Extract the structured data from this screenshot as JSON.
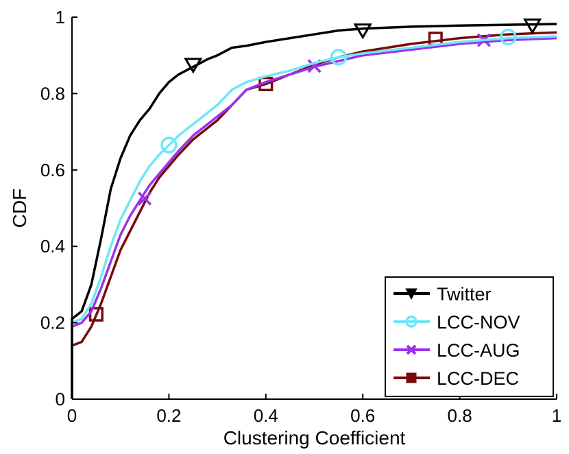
{
  "chart_data": {
    "type": "line",
    "title": "",
    "xlabel": "Clustering Coefficient",
    "ylabel": "CDF",
    "xlim": [
      0,
      1
    ],
    "ylim": [
      0,
      1
    ],
    "xticks": [
      0,
      0.2,
      0.4,
      0.6,
      0.8,
      1
    ],
    "yticks": [
      0,
      0.2,
      0.4,
      0.6,
      0.8,
      1
    ],
    "xtick_labels": [
      "0",
      "0.2",
      "0.4",
      "0.6",
      "0.8",
      "1"
    ],
    "ytick_labels": [
      "0",
      "0.2",
      "0.4",
      "0.6",
      "0.8",
      "1"
    ],
    "grid": false,
    "legend_position": "bottom-right",
    "series": [
      {
        "name": "Twitter",
        "color": "#000000",
        "marker": "triangle-down",
        "x": [
          0,
          0.02,
          0.04,
          0.06,
          0.08,
          0.1,
          0.12,
          0.14,
          0.16,
          0.18,
          0.2,
          0.22,
          0.25,
          0.28,
          0.3,
          0.33,
          0.36,
          0.4,
          0.45,
          0.5,
          0.55,
          0.6,
          0.7,
          0.8,
          0.9,
          1
        ],
        "y": [
          0.21,
          0.23,
          0.3,
          0.42,
          0.55,
          0.63,
          0.69,
          0.73,
          0.76,
          0.8,
          0.83,
          0.85,
          0.87,
          0.89,
          0.9,
          0.92,
          0.925,
          0.935,
          0.945,
          0.955,
          0.965,
          0.97,
          0.975,
          0.978,
          0.98,
          0.982
        ],
        "markers_x": [
          0.25,
          0.6,
          0.95
        ],
        "markers_y": [
          0.875,
          0.965,
          0.978
        ]
      },
      {
        "name": "LCC-NOV",
        "color": "#6fe6f5",
        "marker": "circle",
        "x": [
          0,
          0.02,
          0.04,
          0.06,
          0.08,
          0.1,
          0.12,
          0.14,
          0.16,
          0.18,
          0.2,
          0.22,
          0.25,
          0.28,
          0.3,
          0.33,
          0.36,
          0.4,
          0.45,
          0.5,
          0.55,
          0.6,
          0.7,
          0.8,
          0.9,
          1
        ],
        "y": [
          0.2,
          0.21,
          0.25,
          0.32,
          0.4,
          0.47,
          0.52,
          0.57,
          0.61,
          0.64,
          0.665,
          0.69,
          0.72,
          0.75,
          0.77,
          0.81,
          0.83,
          0.845,
          0.86,
          0.88,
          0.895,
          0.905,
          0.92,
          0.935,
          0.945,
          0.95
        ],
        "markers_x": [
          0.2,
          0.55,
          0.9
        ],
        "markers_y": [
          0.665,
          0.895,
          0.948
        ]
      },
      {
        "name": "LCC-AUG",
        "color": "#9b30f0",
        "marker": "x",
        "x": [
          0,
          0.02,
          0.04,
          0.06,
          0.08,
          0.1,
          0.12,
          0.14,
          0.16,
          0.18,
          0.2,
          0.22,
          0.25,
          0.28,
          0.3,
          0.33,
          0.36,
          0.4,
          0.45,
          0.5,
          0.55,
          0.6,
          0.7,
          0.8,
          0.9,
          1
        ],
        "y": [
          0.19,
          0.2,
          0.23,
          0.29,
          0.36,
          0.43,
          0.48,
          0.52,
          0.56,
          0.59,
          0.62,
          0.65,
          0.69,
          0.72,
          0.74,
          0.77,
          0.81,
          0.83,
          0.85,
          0.87,
          0.885,
          0.9,
          0.915,
          0.93,
          0.94,
          0.945
        ],
        "markers_x": [
          0.15,
          0.5,
          0.85
        ],
        "markers_y": [
          0.525,
          0.872,
          0.94
        ]
      },
      {
        "name": "LCC-DEC",
        "color": "#7a0a0a",
        "marker": "square",
        "x": [
          0,
          0.02,
          0.04,
          0.06,
          0.08,
          0.1,
          0.12,
          0.14,
          0.16,
          0.18,
          0.2,
          0.22,
          0.25,
          0.28,
          0.3,
          0.33,
          0.36,
          0.4,
          0.45,
          0.5,
          0.55,
          0.6,
          0.7,
          0.8,
          0.9,
          1
        ],
        "y": [
          0.14,
          0.15,
          0.19,
          0.25,
          0.32,
          0.39,
          0.44,
          0.49,
          0.54,
          0.58,
          0.61,
          0.64,
          0.68,
          0.71,
          0.73,
          0.77,
          0.81,
          0.825,
          0.85,
          0.875,
          0.895,
          0.91,
          0.93,
          0.945,
          0.955,
          0.96
        ],
        "markers_x": [
          0.05,
          0.4,
          0.75
        ],
        "markers_y": [
          0.222,
          0.825,
          0.943
        ]
      }
    ]
  }
}
